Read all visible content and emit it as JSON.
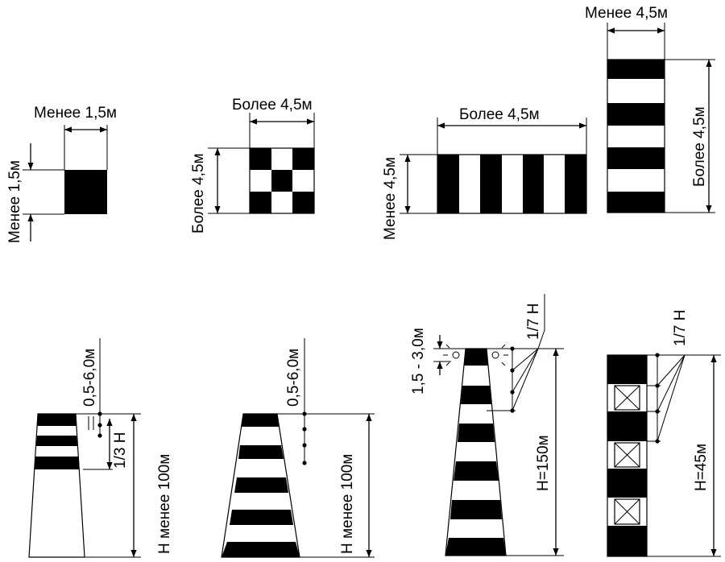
{
  "labels": {
    "less_1_5_w": "Менее 1,5м",
    "less_1_5_h": "Менее 1,5м",
    "more_4_5_checker_w": "Более 4,5м",
    "more_4_5_checker_h": "Более 4,5м",
    "more_4_5_horiz_w": "Более 4,5м",
    "less_4_5_horiz_h": "Менее 4,5м",
    "less_4_5_vert_w": "Менее 4,5м",
    "more_4_5_vert_h": "Более 4,5м",
    "range_a": "0,5-6,0м",
    "range_b": "0,5-6,0м",
    "range_c": "1,5 - 3,0м",
    "third_h": "1/3 Н",
    "h_less_100_a": "Н менее 100м",
    "h_less_100_b": "Н менее 100м",
    "h_150": "Н=150м",
    "h_45": "Н=45м",
    "seventh_h_a": "1/7 Н",
    "seventh_h_b": "1/7 Н"
  },
  "colors": {
    "ink": "#000000",
    "paper": "#ffffff"
  }
}
